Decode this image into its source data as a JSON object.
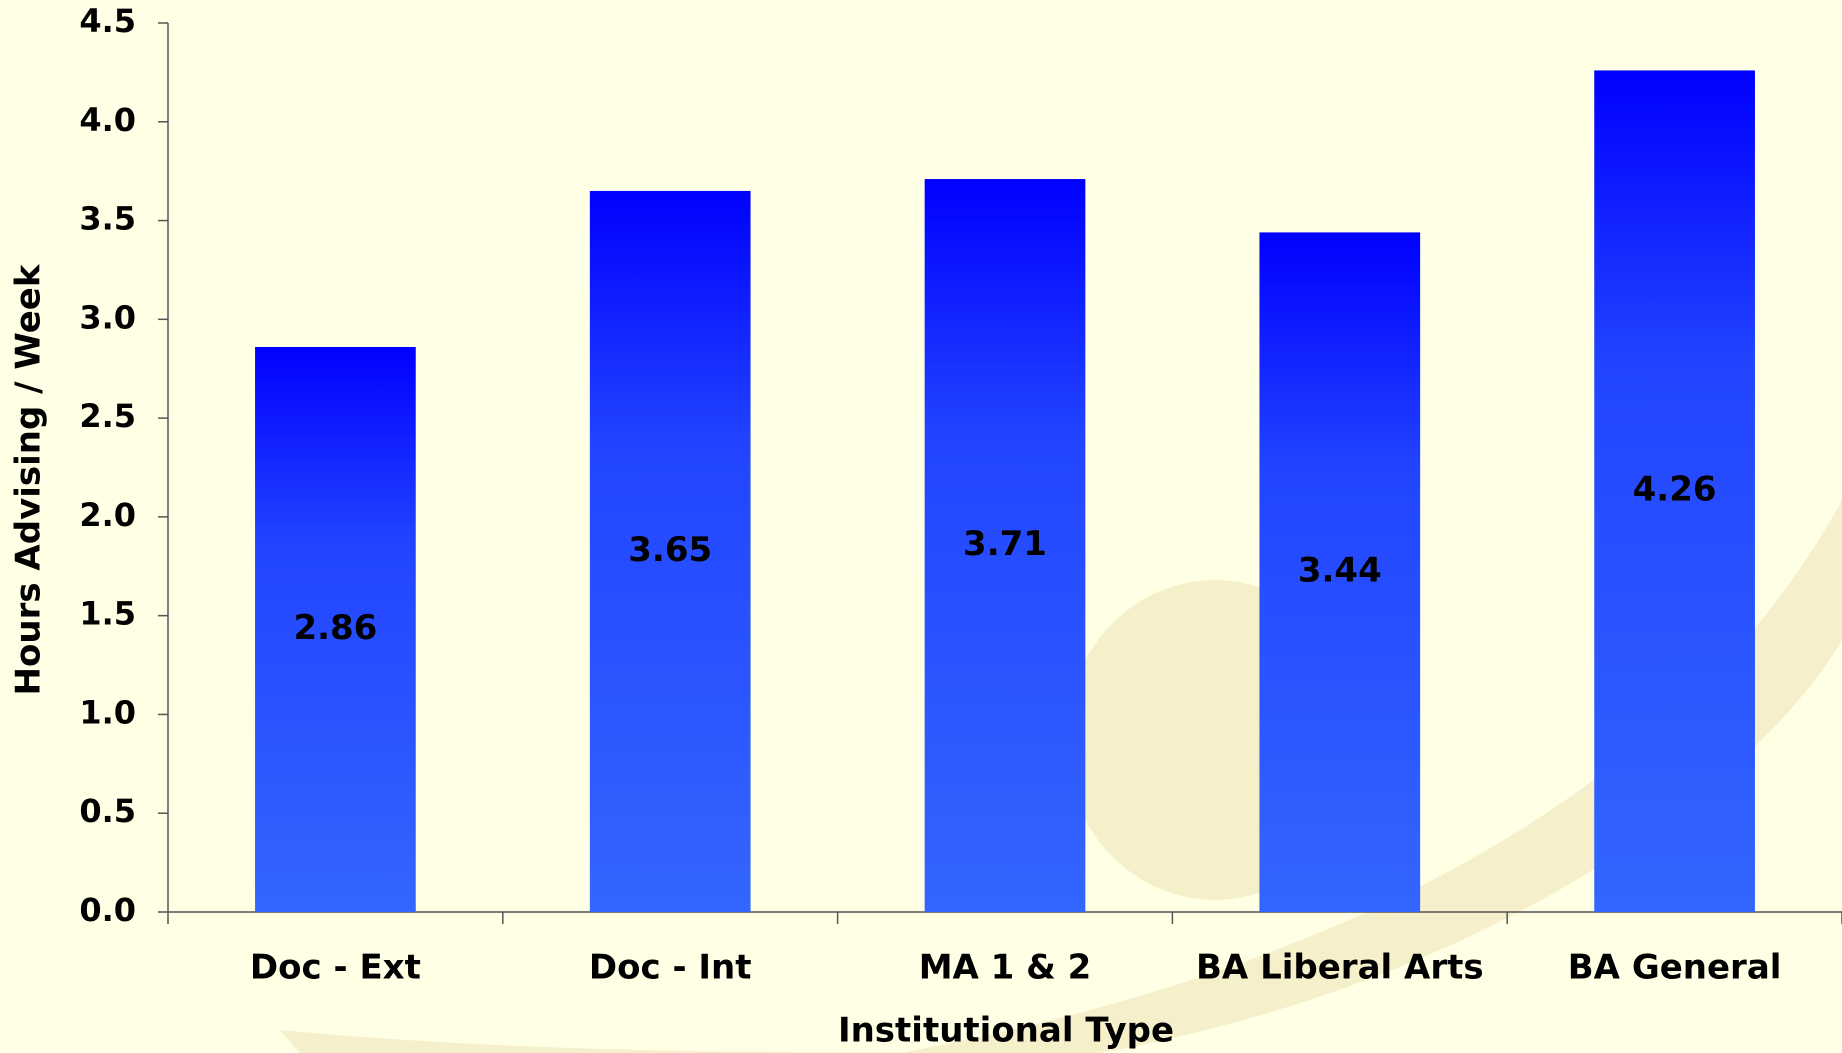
{
  "chart_data": {
    "type": "bar",
    "x_label": "Institutional Type",
    "y_label": "Hours Advising / Week",
    "categories": [
      "Doc - Ext",
      "Doc - Int",
      "MA 1 & 2",
      "BA Liberal Arts",
      "BA General"
    ],
    "values": [
      2.86,
      3.65,
      3.71,
      3.44,
      4.26
    ],
    "color": "#0000ff",
    "ylim": [
      0,
      4.5
    ],
    "yticks": [
      {
        "value": 0,
        "label": "0.0"
      },
      0.5,
      {
        "value": 1,
        "label": "1.0"
      },
      1.5,
      {
        "value": 2,
        "label": "2.0"
      },
      2.5,
      {
        "value": 3,
        "label": "3.0"
      },
      3.5,
      {
        "value": 4,
        "label": "4.0"
      },
      4.5
    ]
  }
}
